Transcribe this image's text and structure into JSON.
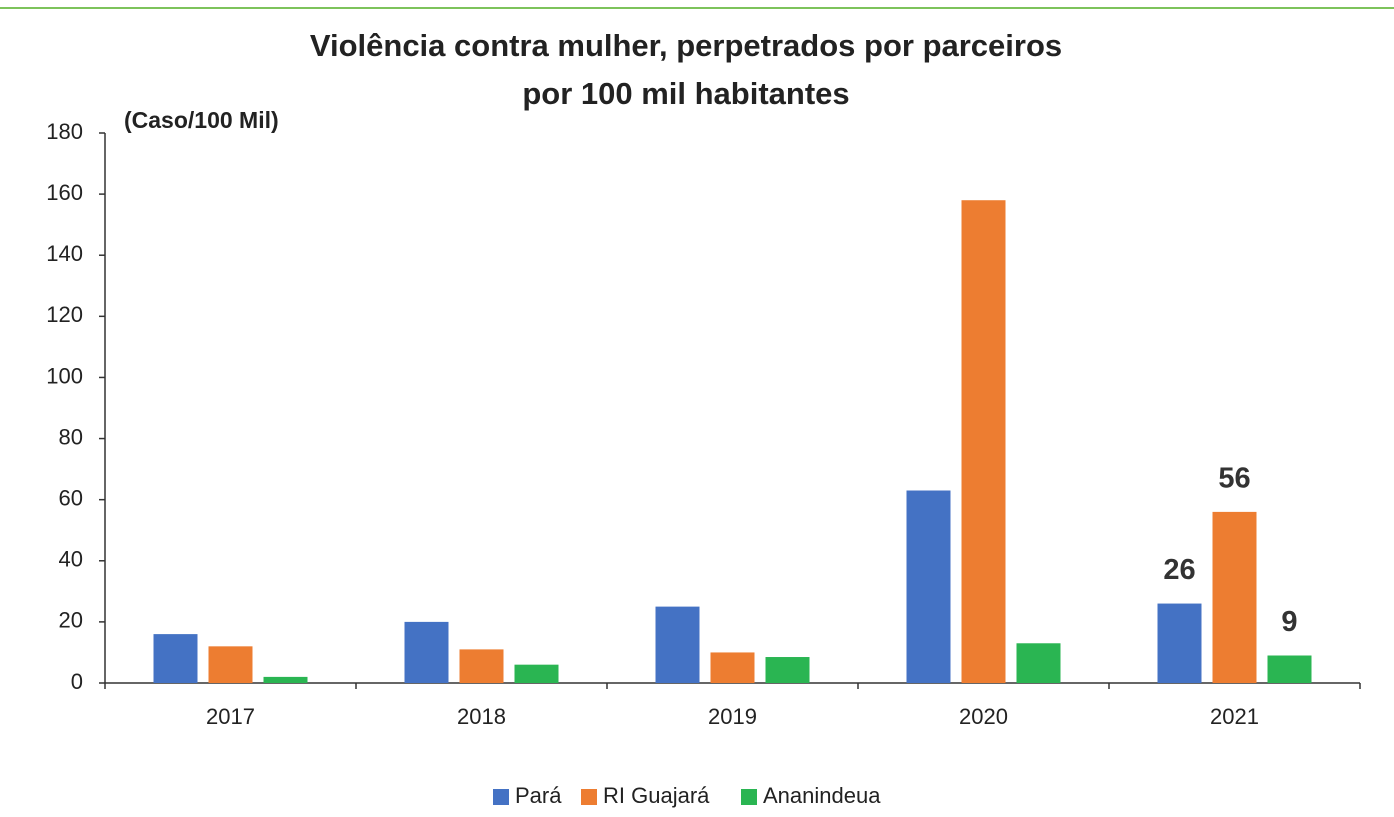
{
  "chart_data": {
    "type": "bar",
    "title_lines": [
      "Violência contra mulher, perpetrados por parceiros",
      "por 100 mil habitantes"
    ],
    "y_label": "(Caso/100 Mil)",
    "categories": [
      "2017",
      "2018",
      "2019",
      "2020",
      "2021"
    ],
    "series": [
      {
        "name": "Pará",
        "color": "#4472c4",
        "values": [
          16,
          20,
          25,
          63,
          26
        ],
        "value_labels": [
          null,
          null,
          null,
          null,
          "26"
        ]
      },
      {
        "name": "RI Guajará",
        "color": "#ed7d31",
        "values": [
          12,
          11,
          10,
          158,
          56
        ],
        "value_labels": [
          null,
          null,
          null,
          null,
          "56"
        ]
      },
      {
        "name": "Ananindeua",
        "color": "#2ab552",
        "values": [
          2,
          6,
          8.5,
          13,
          9
        ],
        "value_labels": [
          null,
          null,
          null,
          null,
          "9"
        ]
      }
    ],
    "ylim": [
      0,
      180
    ],
    "yticks": [
      0,
      20,
      40,
      60,
      80,
      100,
      120,
      140,
      160,
      180
    ],
    "grid": false,
    "legend": "bottom"
  }
}
